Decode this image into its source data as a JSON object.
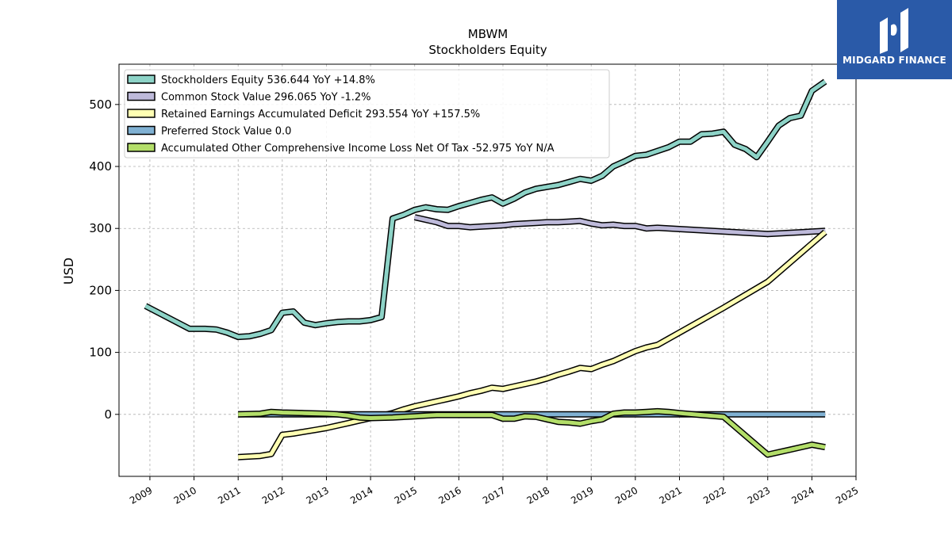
{
  "brand": {
    "name": "MIDGARD FINANCE",
    "color": "#2a5aa8"
  },
  "chart_data": {
    "type": "line",
    "title": "MBWM",
    "subtitle": "Stockholders  Equity",
    "xlabel": "",
    "ylabel": "USD",
    "xlim": [
      2008.3,
      2025.0
    ],
    "ylim": [
      -100,
      565
    ],
    "x_ticks": [
      "2009",
      "2010",
      "2011",
      "2012",
      "2013",
      "2014",
      "2015",
      "2016",
      "2017",
      "2018",
      "2019",
      "2020",
      "2021",
      "2022",
      "2023",
      "2024",
      "2025"
    ],
    "y_ticks": [
      0,
      100,
      200,
      300,
      400,
      500
    ],
    "grid": true,
    "legend_position": "top-left",
    "series": [
      {
        "name": "Stockholders Equity  536.644 YoY +14.8%",
        "color": "#8dd3c7",
        "points": [
          [
            2008.9,
            175
          ],
          [
            2009.9,
            138
          ],
          [
            2010.25,
            138
          ],
          [
            2010.5,
            137
          ],
          [
            2010.75,
            132
          ],
          [
            2011.0,
            125
          ],
          [
            2011.25,
            126
          ],
          [
            2011.5,
            130
          ],
          [
            2011.75,
            136
          ],
          [
            2012.0,
            164
          ],
          [
            2012.25,
            166
          ],
          [
            2012.5,
            148
          ],
          [
            2012.75,
            144
          ],
          [
            2013.0,
            147
          ],
          [
            2013.25,
            149
          ],
          [
            2013.5,
            150
          ],
          [
            2013.75,
            150
          ],
          [
            2014.0,
            152
          ],
          [
            2014.25,
            157
          ],
          [
            2014.5,
            316
          ],
          [
            2014.75,
            322
          ],
          [
            2015.0,
            330
          ],
          [
            2015.25,
            334
          ],
          [
            2015.5,
            331
          ],
          [
            2015.75,
            330
          ],
          [
            2016.0,
            336
          ],
          [
            2016.25,
            341
          ],
          [
            2016.5,
            346
          ],
          [
            2016.75,
            350
          ],
          [
            2017.0,
            340
          ],
          [
            2017.25,
            348
          ],
          [
            2017.5,
            358
          ],
          [
            2017.75,
            364
          ],
          [
            2018.0,
            367
          ],
          [
            2018.25,
            370
          ],
          [
            2018.5,
            375
          ],
          [
            2018.75,
            380
          ],
          [
            2019.0,
            377
          ],
          [
            2019.25,
            385
          ],
          [
            2019.5,
            400
          ],
          [
            2019.75,
            408
          ],
          [
            2020.0,
            417
          ],
          [
            2020.25,
            419
          ],
          [
            2020.5,
            425
          ],
          [
            2020.75,
            431
          ],
          [
            2021.0,
            440
          ],
          [
            2021.25,
            440
          ],
          [
            2021.5,
            452
          ],
          [
            2021.75,
            453
          ],
          [
            2022.0,
            456
          ],
          [
            2022.25,
            435
          ],
          [
            2022.5,
            428
          ],
          [
            2022.75,
            415
          ],
          [
            2023.0,
            440
          ],
          [
            2023.25,
            466
          ],
          [
            2023.5,
            478
          ],
          [
            2023.75,
            482
          ],
          [
            2024.0,
            522
          ],
          [
            2024.3,
            537
          ]
        ]
      },
      {
        "name": "Common Stock Value  296.065 YoY -1.2%",
        "color": "#bebada",
        "points": [
          [
            2015.0,
            318
          ],
          [
            2015.5,
            310
          ],
          [
            2015.75,
            304
          ],
          [
            2016.0,
            304
          ],
          [
            2016.25,
            302
          ],
          [
            2016.5,
            303
          ],
          [
            2016.75,
            304
          ],
          [
            2017.0,
            305
          ],
          [
            2017.25,
            307
          ],
          [
            2017.5,
            308
          ],
          [
            2017.75,
            309
          ],
          [
            2018.0,
            310
          ],
          [
            2018.25,
            310
          ],
          [
            2018.5,
            311
          ],
          [
            2018.75,
            312
          ],
          [
            2019.0,
            308
          ],
          [
            2019.25,
            305
          ],
          [
            2019.5,
            306
          ],
          [
            2019.75,
            304
          ],
          [
            2020.0,
            304
          ],
          [
            2020.25,
            300
          ],
          [
            2020.5,
            301
          ],
          [
            2021.0,
            299
          ],
          [
            2022.0,
            295
          ],
          [
            2023.0,
            291
          ],
          [
            2024.3,
            296
          ]
        ]
      },
      {
        "name": "Retained Earnings Accumulated Deficit  293.554 YoY +157.5%",
        "color": "#ffffb3",
        "points": [
          [
            2011.0,
            -69
          ],
          [
            2011.5,
            -67
          ],
          [
            2011.75,
            -64
          ],
          [
            2012.0,
            -33
          ],
          [
            2012.25,
            -31
          ],
          [
            2012.5,
            -28
          ],
          [
            2012.75,
            -25
          ],
          [
            2013.0,
            -22
          ],
          [
            2013.25,
            -18
          ],
          [
            2013.5,
            -14
          ],
          [
            2013.75,
            -10
          ],
          [
            2014.0,
            -6
          ],
          [
            2014.25,
            -2
          ],
          [
            2014.5,
            2
          ],
          [
            2014.75,
            8
          ],
          [
            2015.0,
            13
          ],
          [
            2015.25,
            17
          ],
          [
            2015.5,
            21
          ],
          [
            2015.75,
            25
          ],
          [
            2016.0,
            29
          ],
          [
            2016.25,
            34
          ],
          [
            2016.5,
            38
          ],
          [
            2016.75,
            43
          ],
          [
            2017.0,
            41
          ],
          [
            2017.25,
            45
          ],
          [
            2017.5,
            49
          ],
          [
            2017.75,
            53
          ],
          [
            2018.0,
            58
          ],
          [
            2018.25,
            64
          ],
          [
            2018.5,
            69
          ],
          [
            2018.75,
            75
          ],
          [
            2019.0,
            73
          ],
          [
            2019.25,
            80
          ],
          [
            2019.5,
            86
          ],
          [
            2019.75,
            94
          ],
          [
            2020.0,
            102
          ],
          [
            2020.25,
            108
          ],
          [
            2020.5,
            112
          ],
          [
            2020.75,
            122
          ],
          [
            2021.0,
            132
          ],
          [
            2022.0,
            172
          ],
          [
            2023.0,
            214
          ],
          [
            2024.3,
            294
          ]
        ]
      },
      {
        "name": "Preferred Stock Value  0.0",
        "color": "#80b1d3",
        "points": [
          [
            2011.0,
            0
          ],
          [
            2024.3,
            0
          ]
        ]
      },
      {
        "name": "Accumulated Other Comprehensive Income Loss Net Of Tax  -52.975 YoY N/A",
        "color": "#b3de69",
        "points": [
          [
            2011.0,
            0
          ],
          [
            2011.5,
            1
          ],
          [
            2011.75,
            4
          ],
          [
            2012.0,
            3
          ],
          [
            2012.5,
            2
          ],
          [
            2013.0,
            1
          ],
          [
            2013.25,
            0
          ],
          [
            2013.5,
            -2
          ],
          [
            2013.75,
            -5
          ],
          [
            2014.0,
            -6
          ],
          [
            2014.5,
            -5
          ],
          [
            2015.0,
            -3
          ],
          [
            2015.25,
            -2
          ],
          [
            2015.5,
            -1
          ],
          [
            2016.0,
            -1
          ],
          [
            2016.5,
            -1
          ],
          [
            2016.75,
            -1
          ],
          [
            2017.0,
            -7
          ],
          [
            2017.25,
            -7
          ],
          [
            2017.5,
            -3
          ],
          [
            2017.75,
            -4
          ],
          [
            2018.0,
            -8
          ],
          [
            2018.25,
            -12
          ],
          [
            2018.5,
            -13
          ],
          [
            2018.75,
            -15
          ],
          [
            2019.0,
            -11
          ],
          [
            2019.25,
            -8
          ],
          [
            2019.5,
            1
          ],
          [
            2019.75,
            3
          ],
          [
            2020.0,
            3
          ],
          [
            2020.25,
            4
          ],
          [
            2020.5,
            5
          ],
          [
            2020.75,
            4
          ],
          [
            2021.0,
            2
          ],
          [
            2021.5,
            -1
          ],
          [
            2022.0,
            -4
          ],
          [
            2023.0,
            -65
          ],
          [
            2023.5,
            -57
          ],
          [
            2024.0,
            -49
          ],
          [
            2024.3,
            -53
          ]
        ]
      }
    ]
  }
}
